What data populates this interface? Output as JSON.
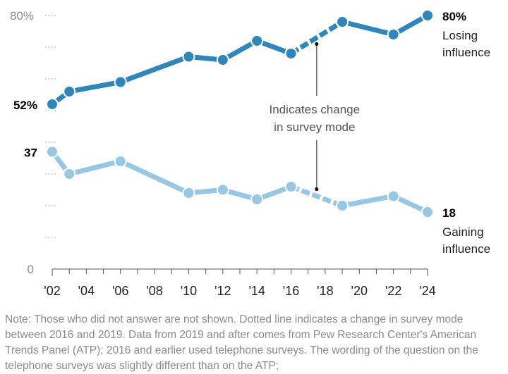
{
  "chart_data": {
    "type": "line",
    "title": "",
    "xlabel": "",
    "ylabel": "",
    "ylim": [
      0,
      80
    ],
    "xlim": [
      2002,
      2024
    ],
    "grid": true,
    "y_ticks": [
      {
        "value": 80,
        "label": "80%"
      },
      {
        "value": 70,
        "label": ""
      },
      {
        "value": 60,
        "label": ""
      },
      {
        "value": 50,
        "label": ""
      },
      {
        "value": 40,
        "label": ""
      },
      {
        "value": 30,
        "label": ""
      },
      {
        "value": 20,
        "label": ""
      },
      {
        "value": 10,
        "label": ""
      },
      {
        "value": 0,
        "label": "0"
      }
    ],
    "x_tick_labels": [
      {
        "year": 2002,
        "label": "'02"
      },
      {
        "year": 2004,
        "label": "'04"
      },
      {
        "year": 2006,
        "label": "'06"
      },
      {
        "year": 2008,
        "label": "'08"
      },
      {
        "year": 2010,
        "label": "'10"
      },
      {
        "year": 2012,
        "label": "'12"
      },
      {
        "year": 2014,
        "label": "'14"
      },
      {
        "year": 2016,
        "label": "'16"
      },
      {
        "year": 2018,
        "label": "'18"
      },
      {
        "year": 2020,
        "label": "'20"
      },
      {
        "year": 2022,
        "label": "'22"
      },
      {
        "year": 2024,
        "label": "'24"
      }
    ],
    "x_minor_ticks_every_year": true,
    "x": [
      2002,
      2003,
      2006,
      2010,
      2012,
      2014,
      2016,
      2019,
      2022,
      2024
    ],
    "series": [
      {
        "name": "Losing influence",
        "color": "#2e86bb",
        "values": [
          52,
          56,
          59,
          67,
          66,
          72,
          68,
          78,
          74,
          80
        ],
        "start_label": "52%",
        "end_label": "80%",
        "end_name_lines": [
          "Losing",
          "influence"
        ]
      },
      {
        "name": "Gaining influence",
        "color": "#97c7e2",
        "values": [
          37,
          30,
          34,
          24,
          25,
          22,
          26,
          20,
          23,
          18
        ],
        "start_label": "37",
        "end_label": "18",
        "end_name_lines": [
          "Gaining",
          "influence"
        ]
      }
    ],
    "dashed_segment": {
      "from_year": 2016,
      "to_year": 2019
    },
    "annotation": {
      "lines": [
        "Indicates change",
        "in survey mode"
      ],
      "at_year": 2017.5
    }
  },
  "note": "Note: Those who did not answer are not shown. Dotted line indicates a change in survey mode between 2016 and 2019. Data from 2019 and after comes from Pew Research Center's American Trends Panel (ATP); 2016 and earlier used telephone surveys. The wording of the question on the telephone surveys was slightly different than on the ATP;"
}
